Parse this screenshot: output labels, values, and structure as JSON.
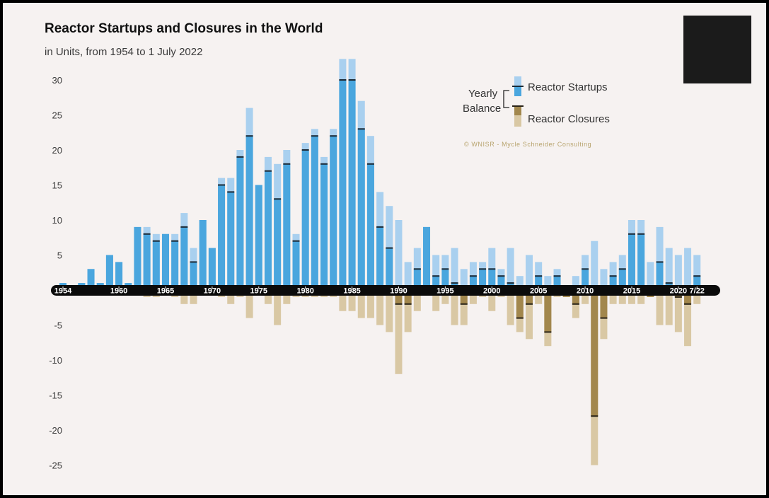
{
  "chart_data": {
    "type": "bar",
    "title": "Reactor Startups and Closures in the World",
    "subtitle": "in Units, from 1954 to 1 July 2022",
    "ylim": [
      -25,
      32
    ],
    "yticks": [
      30,
      25,
      20,
      15,
      10,
      5,
      -5,
      -10,
      -15,
      -20,
      -25
    ],
    "xticks": [
      "1954",
      "1960",
      "1965",
      "1970",
      "1975",
      "1980",
      "1985",
      "1990",
      "1995",
      "2000",
      "2005",
      "2010",
      "2015",
      "2020",
      "7/22"
    ],
    "categories": [
      "1954",
      "1955",
      "1956",
      "1957",
      "1958",
      "1959",
      "1960",
      "1961",
      "1962",
      "1963",
      "1964",
      "1965",
      "1966",
      "1967",
      "1968",
      "1969",
      "1970",
      "1971",
      "1972",
      "1973",
      "1974",
      "1975",
      "1976",
      "1977",
      "1978",
      "1979",
      "1980",
      "1981",
      "1982",
      "1983",
      "1984",
      "1985",
      "1986",
      "1987",
      "1988",
      "1989",
      "1990",
      "1991",
      "1992",
      "1993",
      "1994",
      "1995",
      "1996",
      "1997",
      "1998",
      "1999",
      "2000",
      "2001",
      "2002",
      "2003",
      "2004",
      "2005",
      "2006",
      "2007",
      "2008",
      "2009",
      "2010",
      "2011",
      "2012",
      "2013",
      "2014",
      "2015",
      "2016",
      "2017",
      "2018",
      "2019",
      "2020",
      "2021",
      "7/22"
    ],
    "series": [
      {
        "name": "Reactor Startups",
        "values": [
          1,
          0,
          1,
          3,
          1,
          5,
          4,
          1,
          9,
          9,
          8,
          8,
          8,
          11,
          6,
          10,
          6,
          16,
          16,
          20,
          26,
          15,
          19,
          18,
          20,
          8,
          21,
          23,
          19,
          23,
          33,
          33,
          27,
          22,
          14,
          12,
          10,
          4,
          6,
          9,
          5,
          5,
          6,
          3,
          4,
          4,
          6,
          3,
          6,
          2,
          5,
          4,
          2,
          3,
          0,
          2,
          5,
          7,
          3,
          4,
          5,
          10,
          10,
          4,
          9,
          6,
          5,
          6,
          5
        ]
      },
      {
        "name": "Reactor Closures",
        "values": [
          0,
          0,
          0,
          0,
          0,
          0,
          0,
          0,
          0,
          1,
          1,
          0,
          1,
          2,
          2,
          0,
          0,
          1,
          2,
          1,
          4,
          0,
          2,
          5,
          2,
          1,
          1,
          1,
          1,
          1,
          3,
          3,
          4,
          4,
          5,
          6,
          12,
          6,
          3,
          0,
          3,
          2,
          5,
          5,
          2,
          1,
          3,
          1,
          5,
          6,
          7,
          2,
          8,
          1,
          1,
          4,
          2,
          25,
          7,
          2,
          2,
          2,
          2,
          1,
          5,
          5,
          6,
          8,
          2
        ]
      },
      {
        "name": "Yearly Balance",
        "values": [
          1,
          0,
          1,
          3,
          1,
          5,
          4,
          1,
          9,
          8,
          7,
          8,
          7,
          9,
          4,
          10,
          6,
          15,
          14,
          19,
          22,
          15,
          17,
          13,
          18,
          7,
          20,
          22,
          18,
          22,
          30,
          30,
          23,
          18,
          9,
          6,
          -2,
          -2,
          3,
          9,
          2,
          3,
          1,
          -2,
          2,
          3,
          3,
          2,
          1,
          -4,
          -2,
          2,
          -6,
          2,
          -1,
          -2,
          3,
          -18,
          -4,
          2,
          3,
          8,
          8,
          -1,
          4,
          1,
          -1,
          -2,
          2
        ]
      }
    ],
    "colors": {
      "startups_light": "#a9d0ef",
      "startups_dark": "#4aa6de",
      "closures_light": "#d9c8a4",
      "closures_dark": "#a2874d",
      "axis_band": "#0b0b0b",
      "credit": "#b8a46e"
    },
    "legend": {
      "position": "top-right",
      "balance_label_1": "Yearly",
      "balance_label_2": "Balance",
      "startups_label": "Reactor Startups",
      "closures_label": "Reactor Closures"
    },
    "credit": "© WNISR - Mycle Schneider Consulting"
  }
}
